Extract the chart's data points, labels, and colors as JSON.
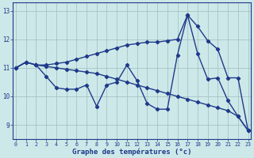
{
  "xlabel": "Graphe des températures (°c)",
  "hours": [
    0,
    1,
    2,
    3,
    4,
    5,
    6,
    7,
    8,
    9,
    10,
    11,
    12,
    13,
    14,
    15,
    16,
    17,
    18,
    19,
    20,
    21,
    22,
    23
  ],
  "temp_actual": [
    11.0,
    11.2,
    11.1,
    10.7,
    10.3,
    10.25,
    10.25,
    10.4,
    9.65,
    10.4,
    10.5,
    11.1,
    10.55,
    9.75,
    9.55,
    9.55,
    11.45,
    12.85,
    11.5,
    10.6,
    10.65,
    9.85,
    9.3,
    8.8
  ],
  "temp_min": [
    11.0,
    11.2,
    11.1,
    11.05,
    11.0,
    10.95,
    10.9,
    10.85,
    10.8,
    10.7,
    10.6,
    10.5,
    10.4,
    10.3,
    10.2,
    10.1,
    10.0,
    9.9,
    9.8,
    9.7,
    9.6,
    9.5,
    9.3,
    8.8
  ],
  "temp_max": [
    11.0,
    11.2,
    11.1,
    11.1,
    11.15,
    11.2,
    11.3,
    11.4,
    11.5,
    11.6,
    11.7,
    11.8,
    11.85,
    11.9,
    11.9,
    11.95,
    12.0,
    12.85,
    12.45,
    11.95,
    11.65,
    10.65,
    10.65,
    8.8
  ],
  "line_color": "#1e3a8a",
  "bg_color": "#cde8e8",
  "grid_color": "#9fbebe",
  "ylim": [
    8.5,
    13.3
  ],
  "yticks": [
    9,
    10,
    11,
    12,
    13
  ],
  "marker": "D",
  "markersize": 2.2,
  "linewidth": 1.0,
  "xlabel_fontsize": 6.5,
  "xtick_fontsize": 4.8,
  "ytick_fontsize": 5.5
}
